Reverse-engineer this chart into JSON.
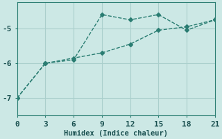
{
  "xlabel": "Humidex (Indice chaleur)",
  "background_color": "#cce8e5",
  "grid_color": "#aacfcc",
  "line_color": "#2a7d72",
  "line1_x": [
    0,
    3,
    6,
    9,
    12,
    15,
    18,
    21
  ],
  "line1_y": [
    -7.0,
    -6.0,
    -5.85,
    -5.7,
    -5.45,
    -5.05,
    -4.95,
    -4.75
  ],
  "line2_x": [
    0,
    3,
    6,
    9,
    12,
    15,
    18,
    21
  ],
  "line2_y": [
    -7.0,
    -6.0,
    -5.9,
    -4.6,
    -4.75,
    -4.6,
    -5.05,
    -4.75
  ],
  "xlim": [
    0,
    21
  ],
  "ylim": [
    -7.5,
    -4.25
  ],
  "xticks": [
    0,
    3,
    6,
    9,
    12,
    15,
    18,
    21
  ],
  "yticks": [
    -7,
    -6,
    -5
  ],
  "markersize": 3,
  "linewidth": 1.0
}
